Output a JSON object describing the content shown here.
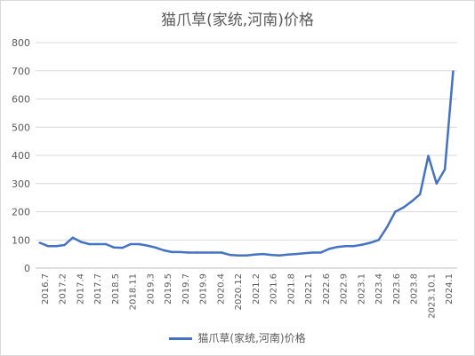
{
  "chart_data": {
    "type": "line",
    "title": "猫爪草(家统,河南)价格",
    "legend": {
      "label": "猫爪草(家统,河南)价格",
      "position": "bottom"
    },
    "ylim": [
      0,
      800
    ],
    "yticks": [
      0,
      100,
      200,
      300,
      400,
      500,
      600,
      700,
      800
    ],
    "grid": true,
    "color": "#4472C4",
    "x_labels": [
      "2016.7",
      "2017.2",
      "2017.4",
      "2017.7",
      "2018.5",
      "2018.11",
      "2019.3",
      "2019.5",
      "2019.7",
      "2019.9",
      "2020.4",
      "2020.12",
      "2021.2",
      "2021.6",
      "2021.8",
      "2022.1",
      "2022.6",
      "2022.9",
      "2023.1",
      "2023.4",
      "2023.6",
      "2023.8",
      "2023.10.1",
      "2024.1"
    ],
    "series": [
      {
        "name": "猫爪草(家统,河南)价格",
        "values": [
          90,
          78,
          78,
          82,
          108,
          93,
          85,
          85,
          85,
          73,
          72,
          85,
          85,
          80,
          73,
          63,
          57,
          57,
          55,
          55,
          55,
          55,
          55,
          47,
          45,
          45,
          48,
          50,
          47,
          45,
          48,
          50,
          53,
          55,
          55,
          68,
          75,
          78,
          78,
          83,
          90,
          100,
          145,
          200,
          215,
          237,
          262,
          398,
          300,
          350,
          698
        ]
      }
    ]
  }
}
